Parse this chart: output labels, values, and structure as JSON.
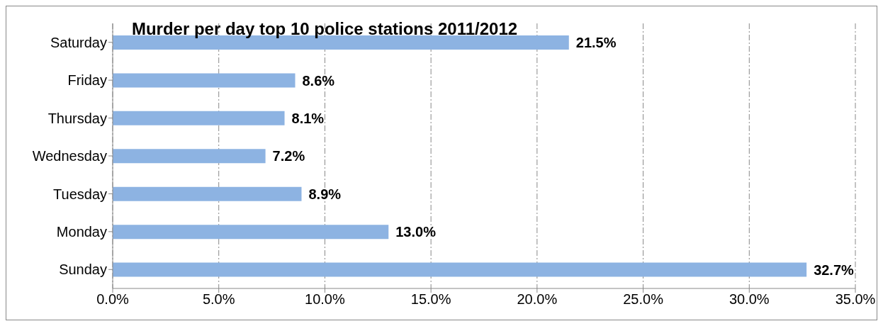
{
  "chart_data": {
    "type": "bar",
    "orientation": "horizontal",
    "title": "Murder per day top 10 police stations 2011/2012",
    "categories": [
      "Saturday",
      "Friday",
      "Thursday",
      "Wednesday",
      "Tuesday",
      "Monday",
      "Sunday"
    ],
    "values": [
      21.5,
      8.6,
      8.1,
      7.2,
      8.9,
      13.0,
      32.7
    ],
    "value_labels": [
      "21.5%",
      "8.6%",
      "8.1%",
      "7.2%",
      "8.9%",
      "13.0%",
      "32.7%"
    ],
    "color": "#8db3e2",
    "xlim": [
      0,
      35
    ],
    "xticks": [
      {
        "value": 0,
        "label": "0.0%"
      },
      {
        "value": 5,
        "label": "5.0%"
      },
      {
        "value": 10,
        "label": "10.0%"
      },
      {
        "value": 15,
        "label": "15.0%"
      },
      {
        "value": 20,
        "label": "20.0%"
      },
      {
        "value": 25,
        "label": "25.0%"
      },
      {
        "value": 30,
        "label": "30.0%"
      },
      {
        "value": 35,
        "label": "35.0%"
      }
    ],
    "grid": "x",
    "legend": false
  }
}
